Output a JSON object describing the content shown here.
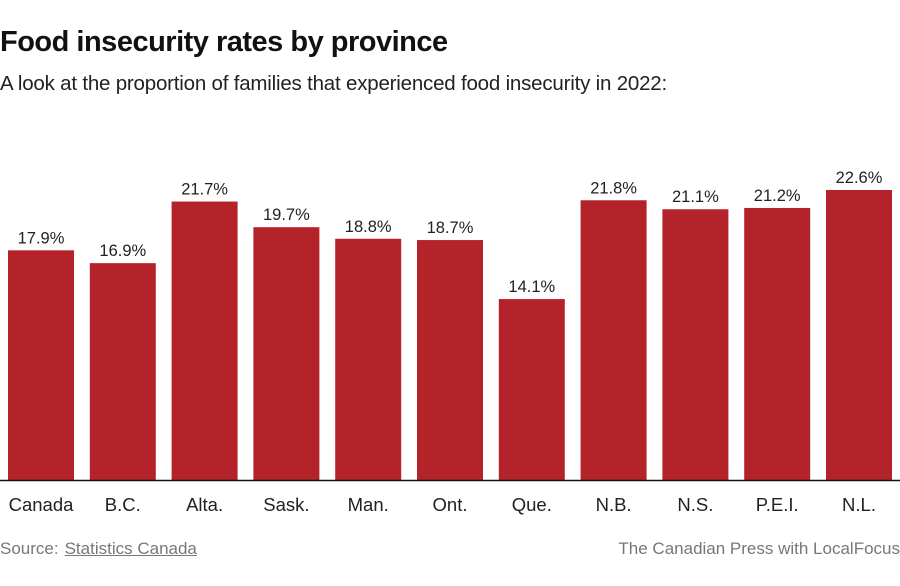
{
  "header": {
    "title": "Food insecurity rates by province",
    "subtitle": "A look at the proportion of families that experienced food insecurity in 2022:"
  },
  "footer": {
    "source_label": "Source:",
    "source_link": "Statistics Canada",
    "credit": "The Canadian Press with LocalFocus"
  },
  "colors": {
    "bar": "#b5232a",
    "axis": "#111111",
    "label": "#222222"
  },
  "chart_data": {
    "type": "bar",
    "title": "Food insecurity rates by province",
    "subtitle": "A look at the proportion of families that experienced food insecurity in 2022:",
    "xlabel": "",
    "ylabel": "",
    "ylim": [
      0,
      22.6
    ],
    "grid": false,
    "legend": "none",
    "categories": [
      "Canada",
      "B.C.",
      "Alta.",
      "Sask.",
      "Man.",
      "Ont.",
      "Que.",
      "N.B.",
      "N.S.",
      "P.E.I.",
      "N.L."
    ],
    "values": [
      17.9,
      16.9,
      21.7,
      19.7,
      18.8,
      18.7,
      14.1,
      21.8,
      21.1,
      21.2,
      22.6
    ],
    "value_labels": [
      "17.9%",
      "16.9%",
      "21.7%",
      "19.7%",
      "18.8%",
      "18.7%",
      "14.1%",
      "21.8%",
      "21.1%",
      "21.2%",
      "22.6%"
    ]
  }
}
